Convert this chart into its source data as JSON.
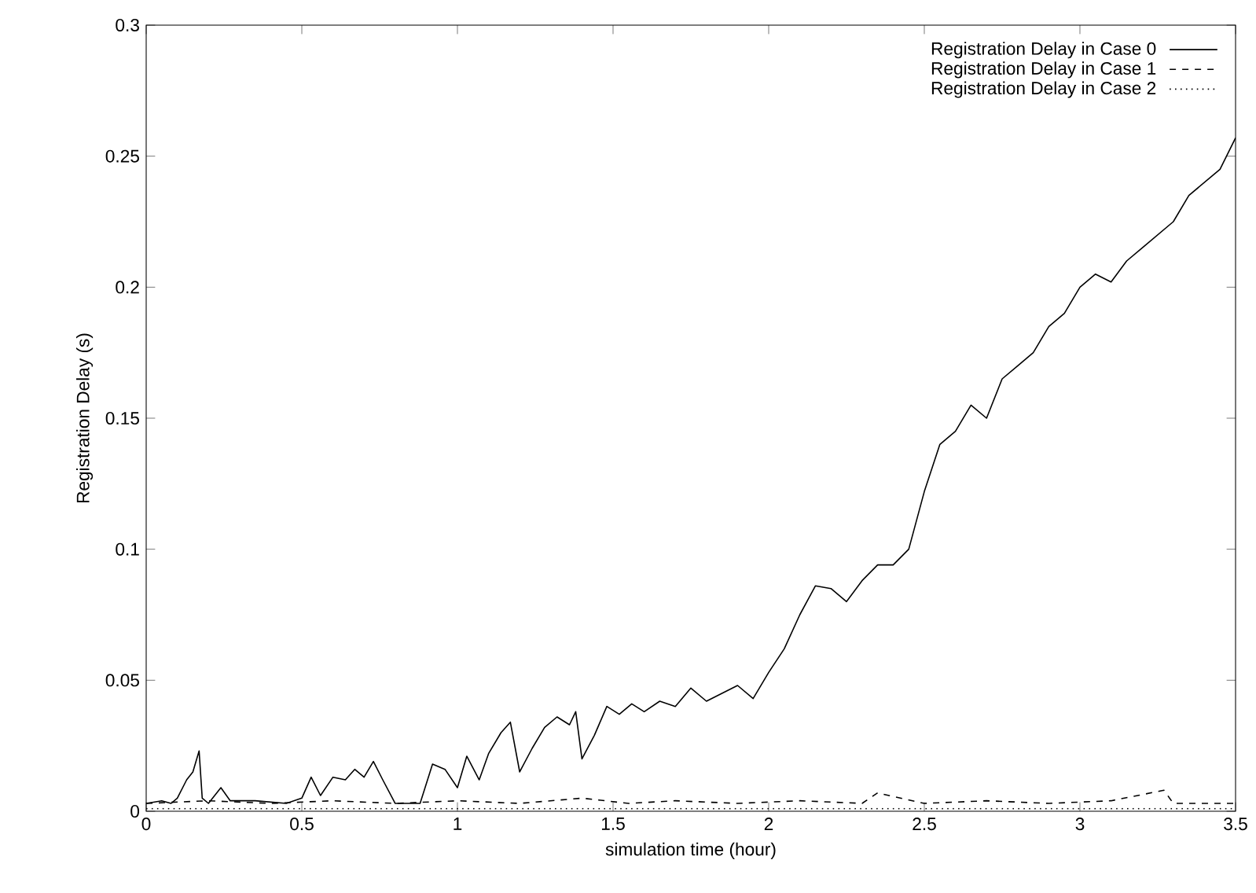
{
  "chart_data": {
    "type": "line",
    "xlabel": "simulation time (hour)",
    "ylabel": "Registration Delay (s)",
    "xlim": [
      0,
      3.5
    ],
    "ylim": [
      0,
      0.3
    ],
    "xticks": [
      0,
      0.5,
      1,
      1.5,
      2,
      2.5,
      3,
      3.5
    ],
    "yticks": [
      0,
      0.05,
      0.1,
      0.15,
      0.2,
      0.25,
      0.3
    ],
    "legend": "top right",
    "grid": false,
    "series": [
      {
        "name": "Registration Delay in Case 0",
        "color": "#000000",
        "line_style": "solid",
        "x": [
          0,
          0.05,
          0.08,
          0.1,
          0.13,
          0.15,
          0.17,
          0.18,
          0.2,
          0.24,
          0.27,
          0.35,
          0.45,
          0.5,
          0.53,
          0.56,
          0.6,
          0.64,
          0.67,
          0.7,
          0.73,
          0.76,
          0.8,
          0.88,
          0.92,
          0.96,
          1.0,
          1.03,
          1.07,
          1.1,
          1.14,
          1.17,
          1.2,
          1.24,
          1.28,
          1.32,
          1.36,
          1.38,
          1.4,
          1.44,
          1.48,
          1.52,
          1.56,
          1.6,
          1.65,
          1.7,
          1.75,
          1.8,
          1.85,
          1.9,
          1.95,
          2.0,
          2.05,
          2.1,
          2.15,
          2.2,
          2.25,
          2.3,
          2.35,
          2.4,
          2.45,
          2.5,
          2.55,
          2.6,
          2.65,
          2.7,
          2.75,
          2.8,
          2.85,
          2.9,
          2.95,
          3.0,
          3.05,
          3.1,
          3.15,
          3.2,
          3.25,
          3.3,
          3.35,
          3.4,
          3.45,
          3.5
        ],
        "values": [
          0.003,
          0.004,
          0.003,
          0.005,
          0.012,
          0.015,
          0.023,
          0.005,
          0.003,
          0.009,
          0.004,
          0.004,
          0.003,
          0.005,
          0.013,
          0.006,
          0.013,
          0.012,
          0.016,
          0.013,
          0.019,
          0.012,
          0.003,
          0.003,
          0.018,
          0.016,
          0.009,
          0.021,
          0.012,
          0.022,
          0.03,
          0.034,
          0.015,
          0.024,
          0.032,
          0.036,
          0.033,
          0.038,
          0.02,
          0.029,
          0.04,
          0.037,
          0.041,
          0.038,
          0.042,
          0.04,
          0.047,
          0.042,
          0.045,
          0.048,
          0.043,
          0.053,
          0.062,
          0.075,
          0.086,
          0.085,
          0.08,
          0.088,
          0.094,
          0.094,
          0.1,
          0.122,
          0.14,
          0.145,
          0.155,
          0.15,
          0.165,
          0.17,
          0.175,
          0.185,
          0.19,
          0.2,
          0.205,
          0.202,
          0.21,
          0.215,
          0.22,
          0.225,
          0.235,
          0.24,
          0.245,
          0.257
        ]
      },
      {
        "name": "Registration Delay in Case 1",
        "color": "#000000",
        "line_style": "dashed",
        "x": [
          0,
          0.2,
          0.4,
          0.6,
          0.8,
          1.0,
          1.2,
          1.4,
          1.55,
          1.7,
          1.9,
          2.1,
          2.3,
          2.35,
          2.5,
          2.7,
          2.9,
          3.1,
          3.27,
          3.3,
          3.5
        ],
        "values": [
          0.003,
          0.004,
          0.003,
          0.004,
          0.003,
          0.004,
          0.003,
          0.005,
          0.003,
          0.004,
          0.003,
          0.004,
          0.003,
          0.007,
          0.003,
          0.004,
          0.003,
          0.004,
          0.008,
          0.003,
          0.003
        ]
      },
      {
        "name": "Registration Delay in Case 2",
        "color": "#000000",
        "line_style": "dotted",
        "x": [
          0,
          0.5,
          1,
          1.5,
          2,
          2.5,
          3,
          3.5
        ],
        "values": [
          0.001,
          0.001,
          0.001,
          0.001,
          0.001,
          0.001,
          0.001,
          0.001
        ]
      }
    ]
  }
}
